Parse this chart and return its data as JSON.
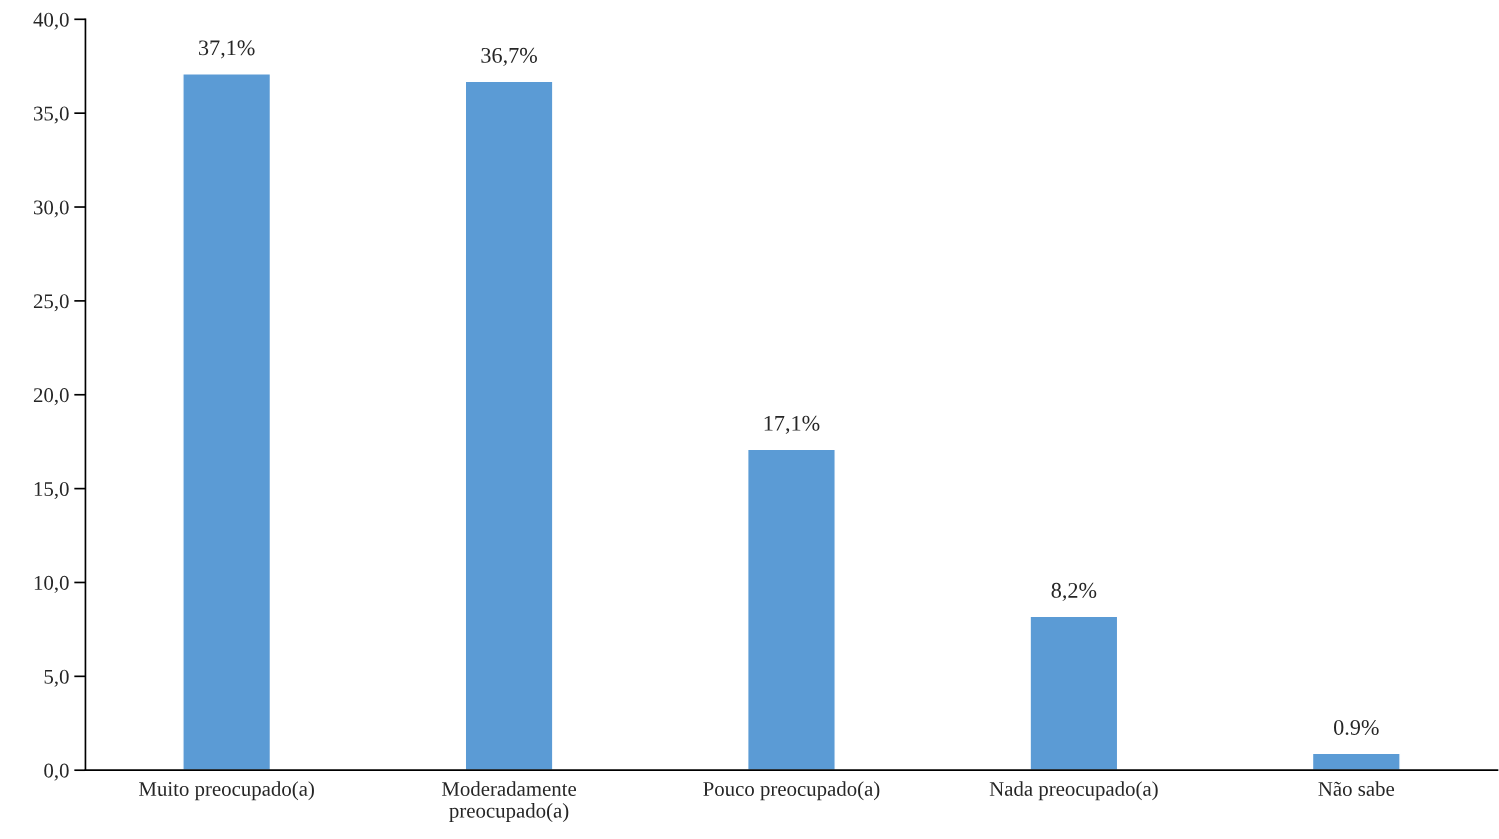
{
  "chart_data": {
    "type": "bar",
    "categories": [
      "Muito preocupado(a)",
      "Moderadamente\npreocupado(a)",
      "Pouco preocupado(a)",
      "Nada preocupado(a)",
      "Não sabe"
    ],
    "values": [
      37.1,
      36.7,
      17.1,
      8.2,
      0.9
    ],
    "value_labels": [
      "37,1%",
      "36,7%",
      "17,1%",
      "8,2%",
      "0.9%"
    ],
    "color": "#5b9bd5",
    "ylim": [
      0,
      40
    ],
    "yticks": [
      {
        "value": 0,
        "label": "0,0"
      },
      {
        "value": 5,
        "label": "5,0"
      },
      {
        "value": 10,
        "label": "10,0"
      },
      {
        "value": 15,
        "label": "15,0"
      },
      {
        "value": 20,
        "label": "20,0"
      },
      {
        "value": 25,
        "label": "25,0"
      },
      {
        "value": 30,
        "label": "30,0"
      },
      {
        "value": 35,
        "label": "35,0"
      },
      {
        "value": 40,
        "label": "40,0"
      }
    ],
    "grid": false,
    "legend": false
  }
}
